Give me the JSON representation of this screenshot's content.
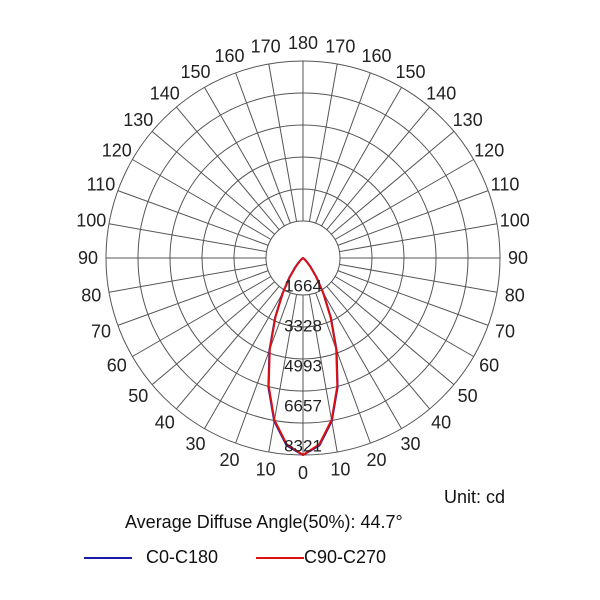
{
  "chart_data": {
    "type": "polar-line",
    "unit_text": "Unit: cd",
    "diffuse_text": "Average Diffuse Angle(50%): 44.7°",
    "radial_ticks": [
      "1664",
      "3328",
      "4993",
      "6657",
      "8321"
    ],
    "radial_values": [
      1664,
      3328,
      4993,
      6657,
      8321
    ],
    "rmax": 8321,
    "angle_labels": [
      "0",
      "10",
      "20",
      "30",
      "40",
      "50",
      "60",
      "70",
      "80",
      "90",
      "100",
      "110",
      "120",
      "130",
      "140",
      "150",
      "160",
      "170",
      "180"
    ],
    "angle_values": [
      0,
      10,
      20,
      30,
      40,
      50,
      60,
      70,
      80,
      90,
      100,
      110,
      120,
      130,
      140,
      150,
      160,
      170,
      180
    ],
    "series": [
      {
        "name": "C0-C180",
        "color": "#1a1aaa",
        "angles": [
          0,
          5,
          10,
          15,
          20,
          25,
          30,
          35,
          40,
          45,
          50,
          55,
          60
        ],
        "values": [
          8321,
          7950,
          7000,
          5650,
          4150,
          2800,
          1750,
          1000,
          520,
          230,
          80,
          15,
          0
        ]
      },
      {
        "name": "C90-C270",
        "color": "#dd1111",
        "angles": [
          0,
          5,
          10,
          15,
          20,
          25,
          30,
          35,
          40,
          45,
          50,
          55,
          60
        ],
        "values": [
          8321,
          7900,
          6950,
          5600,
          4100,
          2750,
          1700,
          950,
          480,
          200,
          65,
          10,
          0
        ]
      }
    ]
  }
}
